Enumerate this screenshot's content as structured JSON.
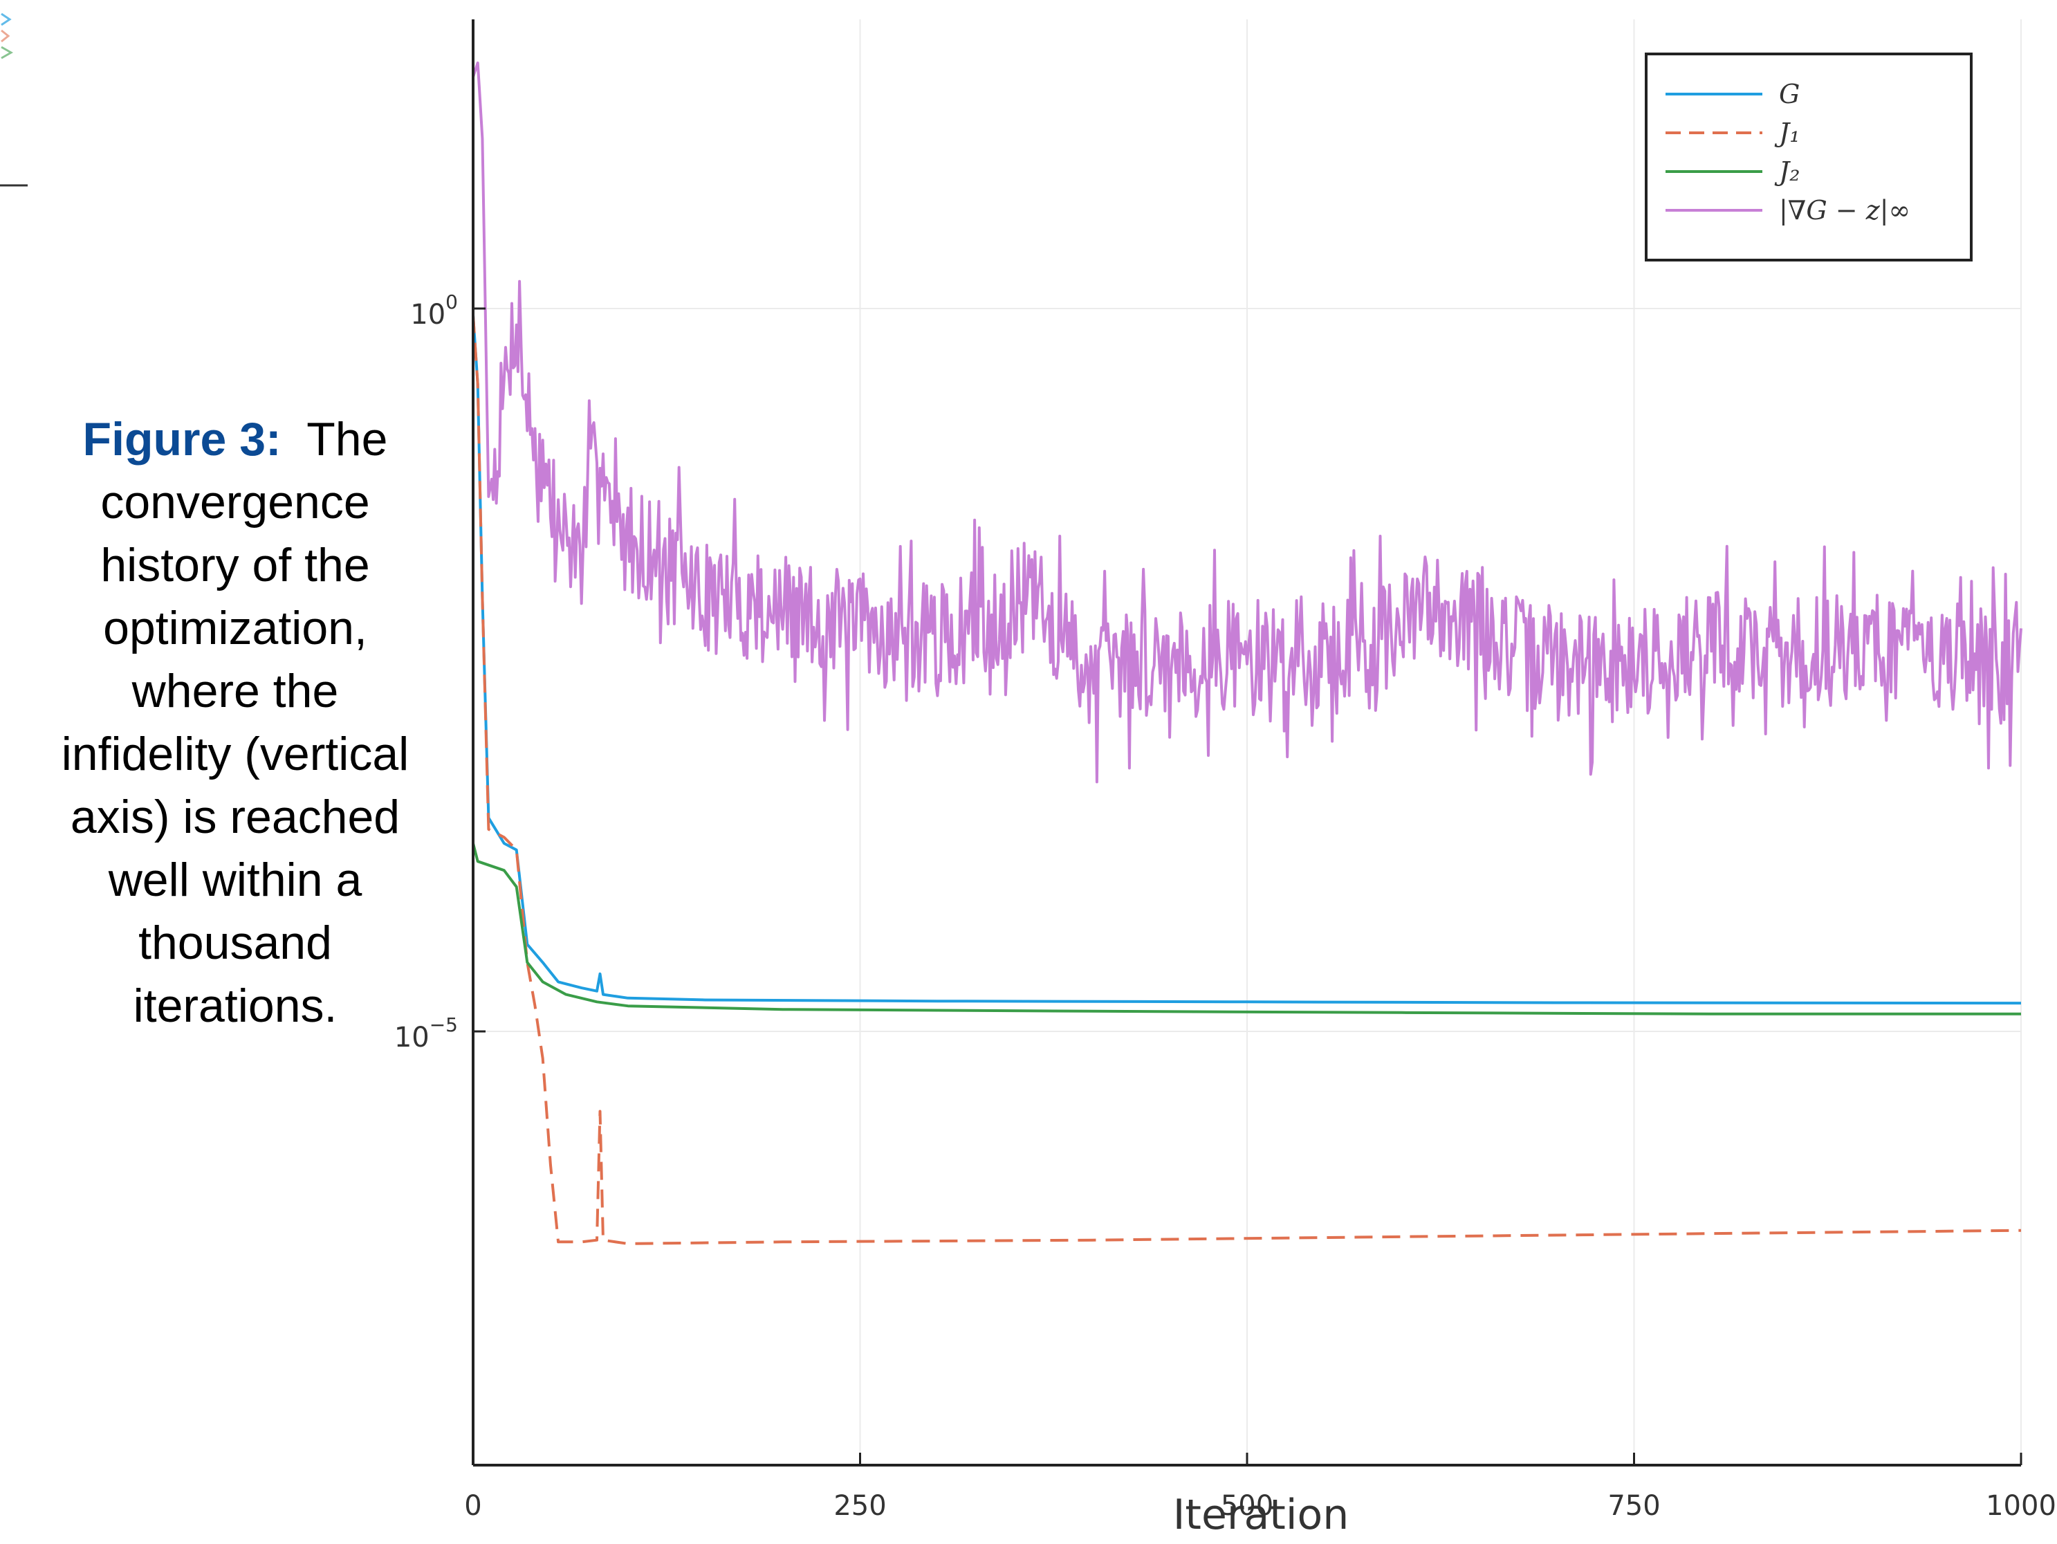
{
  "caption": {
    "label": "Figure 3:",
    "text": "The convergence history of the optimization, where the infidelity (vertical axis) is reached well within a thousand iterations."
  },
  "chart_data": {
    "type": "line",
    "title": "",
    "xlabel": "Iteration",
    "ylabel": "",
    "xlim": [
      0,
      1000
    ],
    "ylim": [
      1e-08,
      100
    ],
    "yscale": "log",
    "xticks": [
      0,
      250,
      500,
      750,
      1000
    ],
    "xtick_labels": [
      "0",
      "250",
      "500",
      "750",
      "1000"
    ],
    "yticks": [
      1,
      1e-05
    ],
    "ytick_labels": [
      {
        "base": "10",
        "exp": "0"
      },
      {
        "base": "10",
        "exp": "−5"
      }
    ],
    "grid": true,
    "legend": {
      "position": "top-right"
    },
    "series": [
      {
        "name": "G",
        "color": "#1f9ee0",
        "dash": "solid",
        "points": [
          [
            0,
            0.9
          ],
          [
            3,
            0.3
          ],
          [
            6,
            0.01
          ],
          [
            10,
            0.0003
          ],
          [
            20,
            0.0002
          ],
          [
            28,
            0.00018
          ],
          [
            35,
            4e-05
          ],
          [
            45,
            3e-05
          ],
          [
            55,
            2.2e-05
          ],
          [
            70,
            2e-05
          ],
          [
            80,
            1.9e-05
          ],
          [
            82,
            2.5e-05
          ],
          [
            84,
            1.8e-05
          ],
          [
            100,
            1.7e-05
          ],
          [
            150,
            1.65e-05
          ],
          [
            300,
            1.62e-05
          ],
          [
            500,
            1.6e-05
          ],
          [
            700,
            1.58e-05
          ],
          [
            1000,
            1.57e-05
          ]
        ]
      },
      {
        "name": "J₁",
        "color": "#e0704f",
        "dash": "dashed",
        "points": [
          [
            0,
            0.9
          ],
          [
            3,
            0.3
          ],
          [
            6,
            0.01
          ],
          [
            10,
            0.00025
          ],
          [
            20,
            0.00022
          ],
          [
            28,
            0.00018
          ],
          [
            35,
            3e-05
          ],
          [
            40,
            1.5e-05
          ],
          [
            45,
            6.5e-06
          ],
          [
            50,
            1.2e-06
          ],
          [
            55,
            3.5e-07
          ],
          [
            70,
            3.5e-07
          ],
          [
            80,
            3.6e-07
          ],
          [
            82,
            2.8e-06
          ],
          [
            84,
            3.6e-07
          ],
          [
            100,
            3.4e-07
          ],
          [
            200,
            3.5e-07
          ],
          [
            400,
            3.6e-07
          ],
          [
            600,
            3.8e-07
          ],
          [
            800,
            4e-07
          ],
          [
            1000,
            4.2e-07
          ]
        ]
      },
      {
        "name": "J₂",
        "color": "#3a9d48",
        "dash": "solid",
        "points": [
          [
            0,
            0.0002
          ],
          [
            3,
            0.00015
          ],
          [
            20,
            0.00013
          ],
          [
            28,
            0.0001
          ],
          [
            35,
            3e-05
          ],
          [
            45,
            2.2e-05
          ],
          [
            60,
            1.8e-05
          ],
          [
            80,
            1.6e-05
          ],
          [
            100,
            1.5e-05
          ],
          [
            200,
            1.42e-05
          ],
          [
            400,
            1.38e-05
          ],
          [
            600,
            1.35e-05
          ],
          [
            800,
            1.32e-05
          ],
          [
            1000,
            1.32e-05
          ]
        ]
      },
      {
        "name": "|∇G − z|∞",
        "color": "#c77fd6",
        "dash": "solid",
        "noise_seed": 7,
        "points": [
          [
            0,
            40
          ],
          [
            3,
            50
          ],
          [
            6,
            15
          ],
          [
            10,
            0.05
          ],
          [
            15,
            0.1
          ],
          [
            22,
            0.4
          ],
          [
            28,
            0.9
          ],
          [
            35,
            0.2
          ],
          [
            45,
            0.08
          ],
          [
            55,
            0.03
          ],
          [
            70,
            0.02
          ],
          [
            82,
            0.15
          ],
          [
            90,
            0.03
          ],
          [
            120,
            0.02
          ],
          [
            150,
            0.01
          ],
          [
            200,
            0.008
          ],
          [
            250,
            0.006
          ],
          [
            300,
            0.005
          ],
          [
            360,
            0.01
          ],
          [
            400,
            0.003
          ],
          [
            450,
            0.004
          ],
          [
            500,
            0.004
          ],
          [
            550,
            0.004
          ],
          [
            600,
            0.006
          ],
          [
            620,
            0.01
          ],
          [
            680,
            0.004
          ],
          [
            720,
            0.003
          ],
          [
            800,
            0.005
          ],
          [
            850,
            0.004
          ],
          [
            900,
            0.005
          ],
          [
            950,
            0.004
          ],
          [
            1000,
            0.003
          ]
        ]
      }
    ]
  }
}
